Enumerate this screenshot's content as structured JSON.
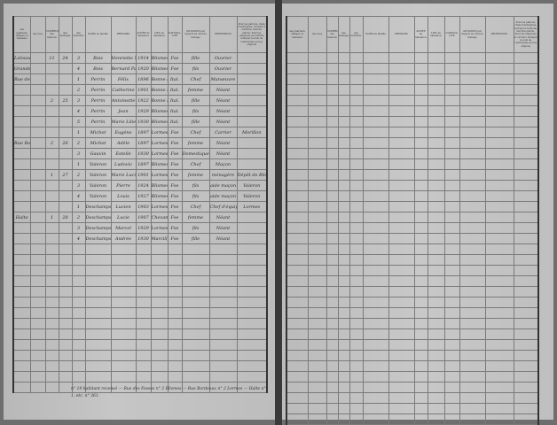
{
  "headers": [
    "DÉSIGNATION",
    "des quartiers, villages ou hameaux",
    "des rues",
    "NUMÉROS des maisons",
    "des ménages",
    "des individus",
    "NOMS de famille",
    "PRÉNOMS",
    "ANNÉE de naissance",
    "LIEU de naissance",
    "NATIONA-LITÉ",
    "SITUATION par rapport au chef de ménage",
    "PROFESSION",
    "Pour les patrons, chefs d'entreprise, ouvriers à domicile, inscrire patron. Pour les employés et ouvriers indiquer le nom de l'entreprise qui les emploie"
  ],
  "col_numbers": [
    "1",
    "2",
    "3",
    "4",
    "5",
    "6",
    "7",
    "8",
    "9",
    "10",
    "11",
    "12",
    "13"
  ],
  "rows": [
    {
      "q": "Lelouvent",
      "r": "",
      "m": "11",
      "men": "24",
      "i": "3",
      "nom": "Bois",
      "pre": "Henriette Marie",
      "an": "1914",
      "lieu": "Blismes",
      "nat": "Fse",
      "sit": "fille",
      "prof": "Ouvrier",
      "obs": ""
    },
    {
      "q": "Grande Rue",
      "r": "",
      "m": "",
      "men": "",
      "i": "4",
      "nom": "Bois",
      "pre": "Bernard Paul",
      "an": "1920",
      "lieu": "Blismes",
      "nat": "Fse",
      "sit": "fils",
      "prof": "Ouvrier",
      "obs": ""
    },
    {
      "q": "Rue des Fosses",
      "r": "",
      "m": "",
      "men": "",
      "i": "1",
      "nom": "Perrin",
      "pre": "Félix",
      "an": "1896",
      "lieu": "Bonne Maye",
      "nat": "Ital.",
      "sit": "Chef",
      "prof": "Manœuvre",
      "obs": ""
    },
    {
      "q": "",
      "r": "",
      "m": "",
      "men": "",
      "i": "2",
      "nom": "Perrin",
      "pre": "Catherine",
      "an": "1901",
      "lieu": "Bonne Maye",
      "nat": "Ital.",
      "sit": "femme",
      "prof": "Néant",
      "obs": ""
    },
    {
      "q": "",
      "r": "",
      "m": "2",
      "men": "25",
      "i": "3",
      "nom": "Perrin",
      "pre": "Antoinette",
      "an": "1922",
      "lieu": "Bonne Maye",
      "nat": "Ital.",
      "sit": "fille",
      "prof": "Néant",
      "obs": ""
    },
    {
      "q": "",
      "r": "",
      "m": "",
      "men": "",
      "i": "4",
      "nom": "Perrin",
      "pre": "Jean",
      "an": "1929",
      "lieu": "Blismes",
      "nat": "Ital.",
      "sit": "fils",
      "prof": "Néant",
      "obs": ""
    },
    {
      "q": "",
      "r": "",
      "m": "",
      "men": "",
      "i": "5",
      "nom": "Perrin",
      "pre": "Marie Lilie",
      "an": "1930",
      "lieu": "Blismes",
      "nat": "Ital.",
      "sit": "fille",
      "prof": "Néant",
      "obs": ""
    },
    {
      "q": "",
      "r": "",
      "m": "",
      "men": "",
      "i": "1",
      "nom": "Michot",
      "pre": "Eugène",
      "an": "1897",
      "lieu": "Lormes",
      "nat": "Fse",
      "sit": "Chef",
      "prof": "Carrier",
      "obs": "Morillon"
    },
    {
      "q": "Rue Bordeaux",
      "r": "",
      "m": "2",
      "men": "26",
      "i": "2",
      "nom": "Michot",
      "pre": "Adèle",
      "an": "1897",
      "lieu": "Lormes",
      "nat": "Fse",
      "sit": "femme",
      "prof": "Néant",
      "obs": ""
    },
    {
      "q": "",
      "r": "",
      "m": "",
      "men": "",
      "i": "3",
      "nom": "Gauvin",
      "pre": "Estelle",
      "an": "1930",
      "lieu": "Lormes",
      "nat": "Fse",
      "sit": "Domestique",
      "prof": "Néant",
      "obs": ""
    },
    {
      "q": "",
      "r": "",
      "m": "",
      "men": "",
      "i": "1",
      "nom": "Valeron",
      "pre": "Ludovic",
      "an": "1897",
      "lieu": "Blismes",
      "nat": "Fse",
      "sit": "Chef",
      "prof": "Maçon",
      "obs": ""
    },
    {
      "q": "",
      "r": "",
      "m": "1",
      "men": "27",
      "i": "2",
      "nom": "Valeron",
      "pre": "Marie Lucie",
      "an": "1901",
      "lieu": "Lormes",
      "nat": "Fse",
      "sit": "femme",
      "prof": "ménagère",
      "obs": "Dépôt de Blismes"
    },
    {
      "q": "",
      "r": "",
      "m": "",
      "men": "",
      "i": "3",
      "nom": "Valeron",
      "pre": "Pierre",
      "an": "1924",
      "lieu": "Blismes",
      "nat": "Fse",
      "sit": "fils",
      "prof": "aide maçon",
      "obs": "Valeron"
    },
    {
      "q": "",
      "r": "",
      "m": "",
      "men": "",
      "i": "4",
      "nom": "Valeron",
      "pre": "Louis",
      "an": "1927",
      "lieu": "Blismes",
      "nat": "Fse",
      "sit": "fils",
      "prof": "aide maçon",
      "obs": "Valeron"
    },
    {
      "q": "",
      "r": "",
      "m": "",
      "men": "",
      "i": "1",
      "nom": "Deschamps",
      "pre": "Lucien",
      "an": "1903",
      "lieu": "Lormes",
      "nat": "Fse",
      "sit": "Chef",
      "prof": "Chef d'équipe",
      "obs": "Lormes"
    },
    {
      "q": "Halte",
      "r": "",
      "m": "1",
      "men": "28",
      "i": "2",
      "nom": "Deschamps",
      "pre": "Lucie",
      "an": "1907",
      "lieu": "Chevannes",
      "nat": "Fse",
      "sit": "femme",
      "prof": "Néant",
      "obs": ""
    },
    {
      "q": "",
      "r": "",
      "m": "",
      "men": "",
      "i": "3",
      "nom": "Deschamps",
      "pre": "Marcel",
      "an": "1929",
      "lieu": "Lormes",
      "nat": "Fse",
      "sit": "fils",
      "prof": "Néant",
      "obs": ""
    },
    {
      "q": "",
      "r": "",
      "m": "",
      "men": "",
      "i": "4",
      "nom": "Deschamps",
      "pre": "Andrée",
      "an": "1930",
      "lieu": "Marcilly",
      "nat": "Fse",
      "sit": "fille",
      "prof": "Néant",
      "obs": ""
    }
  ],
  "footer_note": "n° 18 habitant recensé — Rue des Fosses n° 2 Blismes — Rue Bordeaux n° 2 Lormes — Halte n° 1, etc. n° 361."
}
